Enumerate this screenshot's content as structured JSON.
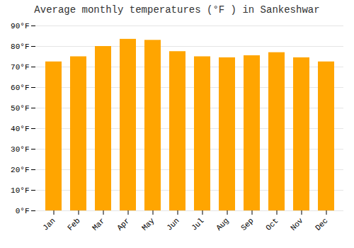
{
  "chart_data": {
    "type": "bar",
    "title": "Average monthly temperatures (°F ) in Sankeshwar",
    "categories": [
      "Jan",
      "Feb",
      "Mar",
      "Apr",
      "May",
      "Jun",
      "Jul",
      "Aug",
      "Sep",
      "Oct",
      "Nov",
      "Dec"
    ],
    "values": [
      72.5,
      75.0,
      80.0,
      83.5,
      83.0,
      77.5,
      75.0,
      74.5,
      75.5,
      77.0,
      74.5,
      72.5
    ],
    "color": "#FFA500",
    "ylim": [
      0,
      90
    ],
    "yticks": [
      {
        "value": 0,
        "label": "0°F"
      },
      {
        "value": 10,
        "label": "10°F"
      },
      {
        "value": 20,
        "label": "20°F"
      },
      {
        "value": 30,
        "label": "30°F"
      },
      {
        "value": 40,
        "label": "40°F"
      },
      {
        "value": 50,
        "label": "50°F"
      },
      {
        "value": 60,
        "label": "60°F"
      },
      {
        "value": 70,
        "label": "70°F"
      },
      {
        "value": 80,
        "label": "80°F"
      },
      {
        "value": 90,
        "label": "90°F"
      }
    ],
    "grid": true
  }
}
